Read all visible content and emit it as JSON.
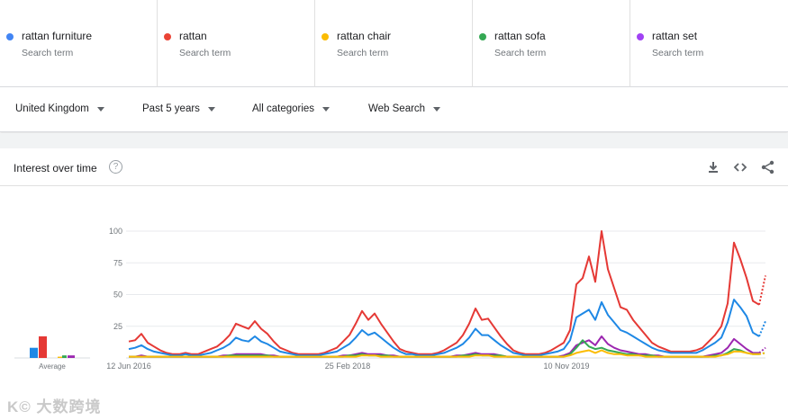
{
  "terms": [
    {
      "name": "rattan furniture",
      "sub": "Search term",
      "color": "#4285f4"
    },
    {
      "name": "rattan",
      "sub": "Search term",
      "color": "#ea4335"
    },
    {
      "name": "rattan chair",
      "sub": "Search term",
      "color": "#fbbc04"
    },
    {
      "name": "rattan sofa",
      "sub": "Search term",
      "color": "#34a853"
    },
    {
      "name": "rattan set",
      "sub": "Search term",
      "color": "#a142f4"
    }
  ],
  "filters": {
    "region": "United Kingdom",
    "time": "Past 5 years",
    "category": "All categories",
    "property": "Web Search"
  },
  "card": {
    "title": "Interest over time",
    "help": "?",
    "icons": [
      "download-icon",
      "embed-icon",
      "share-icon"
    ]
  },
  "watermark": "大数跨境",
  "chart_data": {
    "type": "line",
    "ylim": [
      0,
      100
    ],
    "yticks": [
      "100",
      "75",
      "50",
      "25"
    ],
    "x_tick_labels": [
      "12 Jun 2016",
      "25 Feb 2018",
      "10 Nov 2019"
    ],
    "average_label": "Average",
    "averages": [
      {
        "name": "rattan furniture",
        "value": 8,
        "color": "#1e88e5"
      },
      {
        "name": "rattan",
        "value": 17,
        "color": "#e53935"
      },
      {
        "name": "rattan chair",
        "value": 1,
        "color": "#fbbc04"
      },
      {
        "name": "rattan sofa",
        "value": 2,
        "color": "#34a853"
      },
      {
        "name": "rattan set",
        "value": 2,
        "color": "#9c27b0"
      }
    ],
    "series": [
      {
        "name": "rattan",
        "color": "#e53935",
        "values": [
          13,
          14,
          19,
          12,
          9,
          6,
          4,
          3,
          3,
          4,
          3,
          3,
          5,
          7,
          9,
          13,
          18,
          27,
          25,
          23,
          29,
          23,
          19,
          13,
          8,
          6,
          4,
          3,
          3,
          3,
          3,
          4,
          6,
          8,
          13,
          18,
          27,
          37,
          30,
          35,
          27,
          20,
          13,
          7,
          5,
          4,
          3,
          3,
          3,
          4,
          6,
          9,
          12,
          18,
          27,
          39,
          30,
          31,
          24,
          17,
          11,
          6,
          4,
          3,
          3,
          3,
          4,
          6,
          9,
          12,
          22,
          58,
          63,
          80,
          60,
          100,
          70,
          55,
          40,
          38,
          30,
          24,
          18,
          12,
          9,
          7,
          5,
          5,
          5,
          5,
          6,
          8,
          13,
          18,
          25,
          43,
          91,
          78,
          63,
          45,
          42,
          65
        ]
      },
      {
        "name": "rattan furniture",
        "color": "#1e88e5",
        "values": [
          7,
          8,
          10,
          7,
          5,
          4,
          3,
          2,
          2,
          3,
          2,
          2,
          3,
          4,
          6,
          8,
          11,
          16,
          14,
          13,
          17,
          13,
          11,
          8,
          5,
          4,
          3,
          2,
          2,
          2,
          2,
          3,
          4,
          5,
          8,
          11,
          16,
          22,
          18,
          20,
          16,
          12,
          8,
          5,
          3,
          3,
          2,
          2,
          2,
          3,
          4,
          6,
          8,
          11,
          16,
          23,
          18,
          18,
          14,
          10,
          7,
          4,
          3,
          2,
          2,
          2,
          3,
          4,
          5,
          7,
          14,
          32,
          35,
          38,
          30,
          44,
          34,
          28,
          22,
          20,
          17,
          14,
          11,
          8,
          6,
          5,
          4,
          4,
          4,
          4,
          4,
          6,
          9,
          12,
          16,
          28,
          46,
          40,
          33,
          20,
          17,
          29
        ]
      },
      {
        "name": "rattan set",
        "color": "#9c27b0",
        "values": [
          1,
          1,
          2,
          1,
          1,
          1,
          1,
          1,
          1,
          1,
          1,
          1,
          1,
          1,
          1,
          2,
          2,
          3,
          3,
          3,
          3,
          3,
          2,
          2,
          1,
          1,
          1,
          1,
          1,
          1,
          1,
          1,
          1,
          1,
          2,
          2,
          3,
          4,
          3,
          3,
          3,
          2,
          2,
          1,
          1,
          1,
          1,
          1,
          1,
          1,
          1,
          1,
          2,
          2,
          3,
          4,
          3,
          3,
          3,
          2,
          1,
          1,
          1,
          1,
          1,
          1,
          1,
          1,
          1,
          2,
          4,
          10,
          12,
          14,
          10,
          17,
          11,
          8,
          6,
          5,
          4,
          3,
          3,
          2,
          2,
          1,
          1,
          1,
          1,
          1,
          1,
          1,
          2,
          3,
          4,
          8,
          15,
          11,
          7,
          4,
          4,
          8
        ]
      },
      {
        "name": "rattan sofa",
        "color": "#34a853",
        "values": [
          1,
          1,
          1,
          1,
          1,
          1,
          1,
          1,
          1,
          1,
          1,
          1,
          1,
          1,
          1,
          1,
          2,
          2,
          2,
          2,
          2,
          2,
          2,
          1,
          1,
          1,
          1,
          1,
          1,
          1,
          1,
          1,
          1,
          1,
          1,
          2,
          2,
          3,
          2,
          2,
          2,
          2,
          1,
          1,
          1,
          1,
          1,
          1,
          1,
          1,
          1,
          1,
          1,
          2,
          2,
          3,
          2,
          2,
          2,
          2,
          1,
          1,
          1,
          1,
          1,
          1,
          1,
          1,
          1,
          1,
          3,
          8,
          14,
          9,
          7,
          8,
          6,
          5,
          4,
          3,
          3,
          2,
          2,
          2,
          1,
          1,
          1,
          1,
          1,
          1,
          1,
          1,
          1,
          2,
          2,
          4,
          7,
          6,
          4,
          3,
          3,
          4
        ]
      },
      {
        "name": "rattan chair",
        "color": "#fbbc04",
        "values": [
          1,
          1,
          1,
          1,
          1,
          1,
          1,
          1,
          1,
          1,
          1,
          1,
          1,
          1,
          1,
          1,
          1,
          1,
          1,
          1,
          1,
          1,
          1,
          1,
          1,
          1,
          1,
          1,
          1,
          1,
          1,
          1,
          1,
          1,
          1,
          1,
          1,
          2,
          2,
          2,
          1,
          1,
          1,
          1,
          1,
          1,
          1,
          1,
          1,
          1,
          1,
          1,
          1,
          1,
          1,
          2,
          2,
          2,
          1,
          1,
          1,
          1,
          1,
          1,
          1,
          1,
          1,
          1,
          1,
          1,
          2,
          4,
          5,
          6,
          4,
          6,
          4,
          3,
          3,
          2,
          2,
          2,
          1,
          1,
          1,
          1,
          1,
          1,
          1,
          1,
          1,
          1,
          1,
          1,
          2,
          3,
          5,
          5,
          4,
          3,
          3,
          4
        ]
      }
    ]
  }
}
